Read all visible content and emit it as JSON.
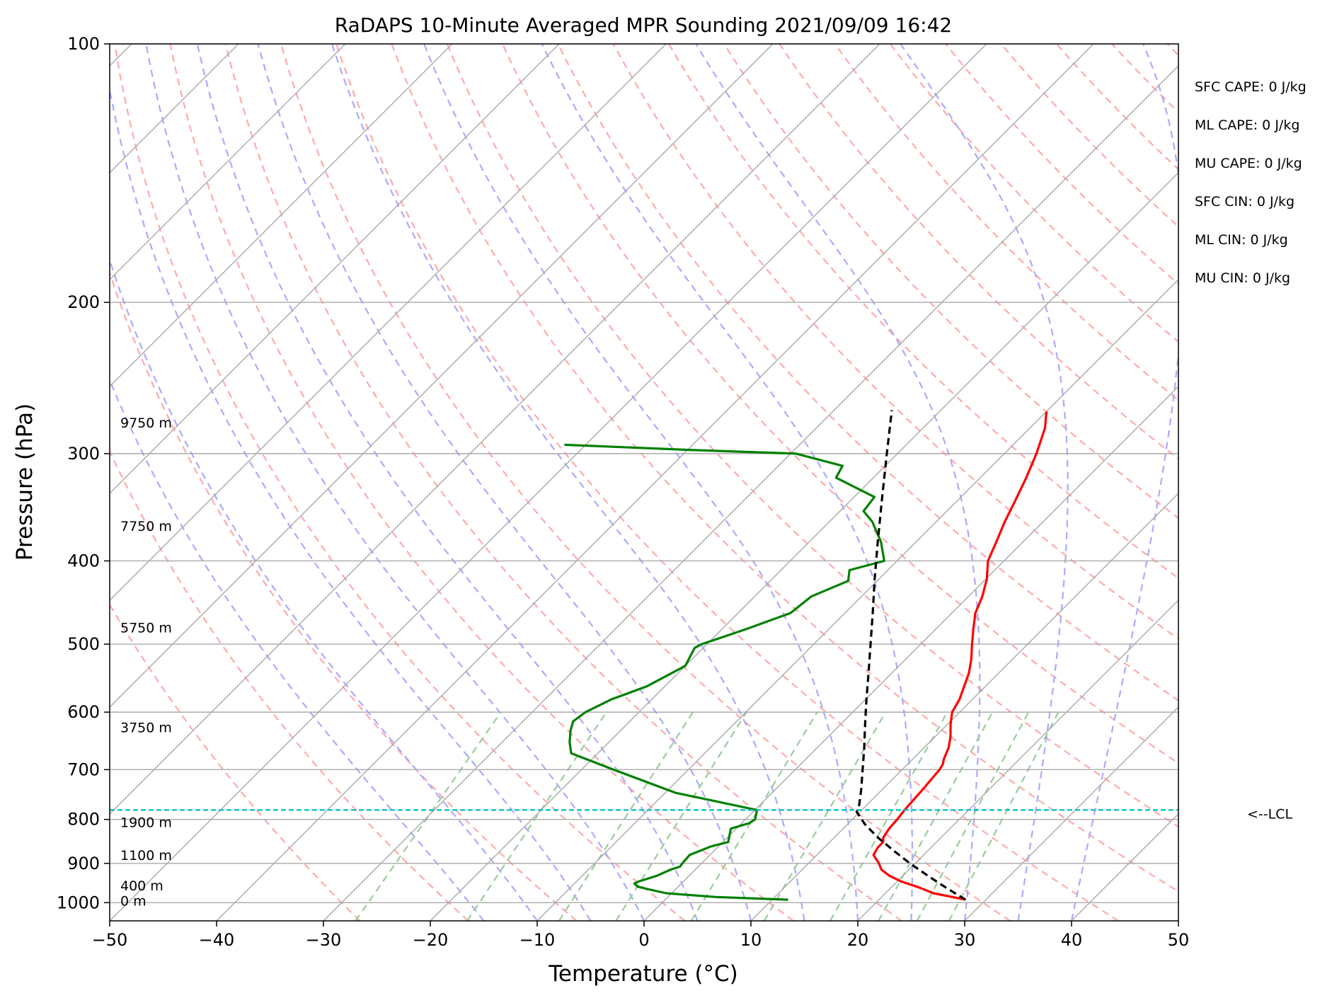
{
  "chart_data": {
    "type": "line",
    "diagram": "skew-T log-P",
    "title": "RaDAPS 10-Minute Averaged MPR Sounding 2021/09/09 16:42",
    "xlabel": "Temperature (°C)",
    "ylabel": "Pressure (hPa)",
    "xlim": [
      -50,
      50
    ],
    "ylim": [
      1050,
      100
    ],
    "y_scale": "log",
    "x_ticks": [
      -50,
      -40,
      -30,
      -20,
      -10,
      0,
      10,
      20,
      30,
      40,
      50
    ],
    "x_tick_labels": [
      "−50",
      "−40",
      "−30",
      "−20",
      "−10",
      "0",
      "10",
      "20",
      "30",
      "40",
      "50"
    ],
    "y_ticks": [
      1000,
      900,
      800,
      700,
      600,
      500,
      400,
      300,
      200,
      100
    ],
    "y_tick_labels": [
      "1000",
      "900",
      "800",
      "700",
      "600",
      "500",
      "400",
      "300",
      "200",
      "100"
    ],
    "grid": true,
    "series": [
      {
        "color": "#ff0000",
        "points": [
          [
            992,
            28.1
          ],
          [
            975,
            24.5
          ],
          [
            960,
            22.6
          ],
          [
            945,
            20.4
          ],
          [
            930,
            18.7
          ],
          [
            915,
            17.4
          ],
          [
            900,
            16.6
          ],
          [
            880,
            15.3
          ],
          [
            862,
            15.0
          ],
          [
            850,
            15.0
          ],
          [
            840,
            14.6
          ],
          [
            820,
            14.3
          ],
          [
            800,
            14.2
          ],
          [
            780,
            14.0
          ],
          [
            760,
            13.9
          ],
          [
            740,
            13.8
          ],
          [
            700,
            13.5
          ],
          [
            690,
            13.3
          ],
          [
            680,
            12.9
          ],
          [
            660,
            12.3
          ],
          [
            640,
            11.4
          ],
          [
            620,
            10.3
          ],
          [
            600,
            9.3
          ],
          [
            580,
            8.8
          ],
          [
            540,
            7.2
          ],
          [
            520,
            6.1
          ],
          [
            500,
            4.8
          ],
          [
            480,
            3.5
          ],
          [
            460,
            2.2
          ],
          [
            440,
            1.3
          ],
          [
            420,
            0.1
          ],
          [
            400,
            -1.5
          ],
          [
            380,
            -2.5
          ],
          [
            360,
            -3.6
          ],
          [
            340,
            -4.6
          ],
          [
            320,
            -5.7
          ],
          [
            300,
            -7.0
          ],
          [
            280,
            -8.6
          ],
          [
            268,
            -10.0
          ]
        ]
      },
      {
        "color": "#008000",
        "points": [
          [
            992,
            11.5
          ],
          [
            985,
            4.5
          ],
          [
            975,
            -0.5
          ],
          [
            965,
            -2.5
          ],
          [
            958,
            -3.8
          ],
          [
            950,
            -4.4
          ],
          [
            945,
            -4.2
          ],
          [
            930,
            -3.0
          ],
          [
            915,
            -2.3
          ],
          [
            908,
            -1.7
          ],
          [
            900,
            -1.8
          ],
          [
            880,
            -1.9
          ],
          [
            860,
            -0.7
          ],
          [
            850,
            0.5
          ],
          [
            835,
            0.0
          ],
          [
            820,
            -0.5
          ],
          [
            808,
            0.7
          ],
          [
            800,
            0.9
          ],
          [
            780,
            0.2
          ],
          [
            745,
            -9.0
          ],
          [
            700,
            -17.0
          ],
          [
            670,
            -22.5
          ],
          [
            650,
            -23.7
          ],
          [
            630,
            -24.7
          ],
          [
            615,
            -25.3
          ],
          [
            600,
            -25.0
          ],
          [
            580,
            -23.8
          ],
          [
            560,
            -21.7
          ],
          [
            530,
            -20.0
          ],
          [
            505,
            -20.8
          ],
          [
            500,
            -20.5
          ],
          [
            480,
            -17.7
          ],
          [
            460,
            -15.1
          ],
          [
            440,
            -14.7
          ],
          [
            422,
            -12.7
          ],
          [
            410,
            -13.6
          ],
          [
            400,
            -11.2
          ],
          [
            380,
            -13.3
          ],
          [
            360,
            -16.0
          ],
          [
            350,
            -17.8
          ],
          [
            337,
            -18.1
          ],
          [
            320,
            -23.5
          ],
          [
            310,
            -24.0
          ],
          [
            300,
            -29.5
          ],
          [
            297,
            -39.9
          ],
          [
            293,
            -52.0
          ]
        ]
      },
      {
        "color": "#000000",
        "style": "dashed",
        "points": [
          [
            992,
            28.1
          ],
          [
            960,
            25.1
          ],
          [
            930,
            22.3
          ],
          [
            900,
            19.5
          ],
          [
            870,
            16.8
          ],
          [
            840,
            14.1
          ],
          [
            810,
            11.6
          ],
          [
            784,
            9.7
          ],
          [
            770,
            9.3
          ],
          [
            740,
            8.1
          ],
          [
            700,
            6.3
          ],
          [
            660,
            4.4
          ],
          [
            620,
            2.3
          ],
          [
            580,
            0.1
          ],
          [
            540,
            -2.2
          ],
          [
            500,
            -4.7
          ],
          [
            460,
            -7.4
          ],
          [
            420,
            -10.4
          ],
          [
            380,
            -13.6
          ],
          [
            340,
            -17.1
          ],
          [
            300,
            -21.0
          ],
          [
            267,
            -24.6
          ]
        ]
      }
    ],
    "height_labels": [
      {
        "text": "0 m",
        "p": 995
      },
      {
        "text": "400 m",
        "p": 955
      },
      {
        "text": "1100 m",
        "p": 880
      },
      {
        "text": "1900 m",
        "p": 806
      },
      {
        "text": "3750 m",
        "p": 625
      },
      {
        "text": "5750 m",
        "p": 478
      },
      {
        "text": "7750 m",
        "p": 364
      },
      {
        "text": "9750 m",
        "p": 276
      }
    ],
    "lcl": {
      "p": 780,
      "label": "<--LCL",
      "color": "#00c0c0"
    },
    "indices": [
      "SFC CAPE: 0 J/kg",
      "ML CAPE: 0 J/kg",
      "MU CAPE: 0 J/kg",
      "SFC CIN: 0 J/kg",
      "ML CIN: 0 J/kg",
      "MU CIN: 0 J/kg"
    ],
    "colors": {
      "isotherm": "#aaaaaa",
      "dry_adiabat": "#ffaaaa",
      "moist_adiabat": "#aaaaff",
      "mixing_ratio": "#99cc99"
    }
  }
}
